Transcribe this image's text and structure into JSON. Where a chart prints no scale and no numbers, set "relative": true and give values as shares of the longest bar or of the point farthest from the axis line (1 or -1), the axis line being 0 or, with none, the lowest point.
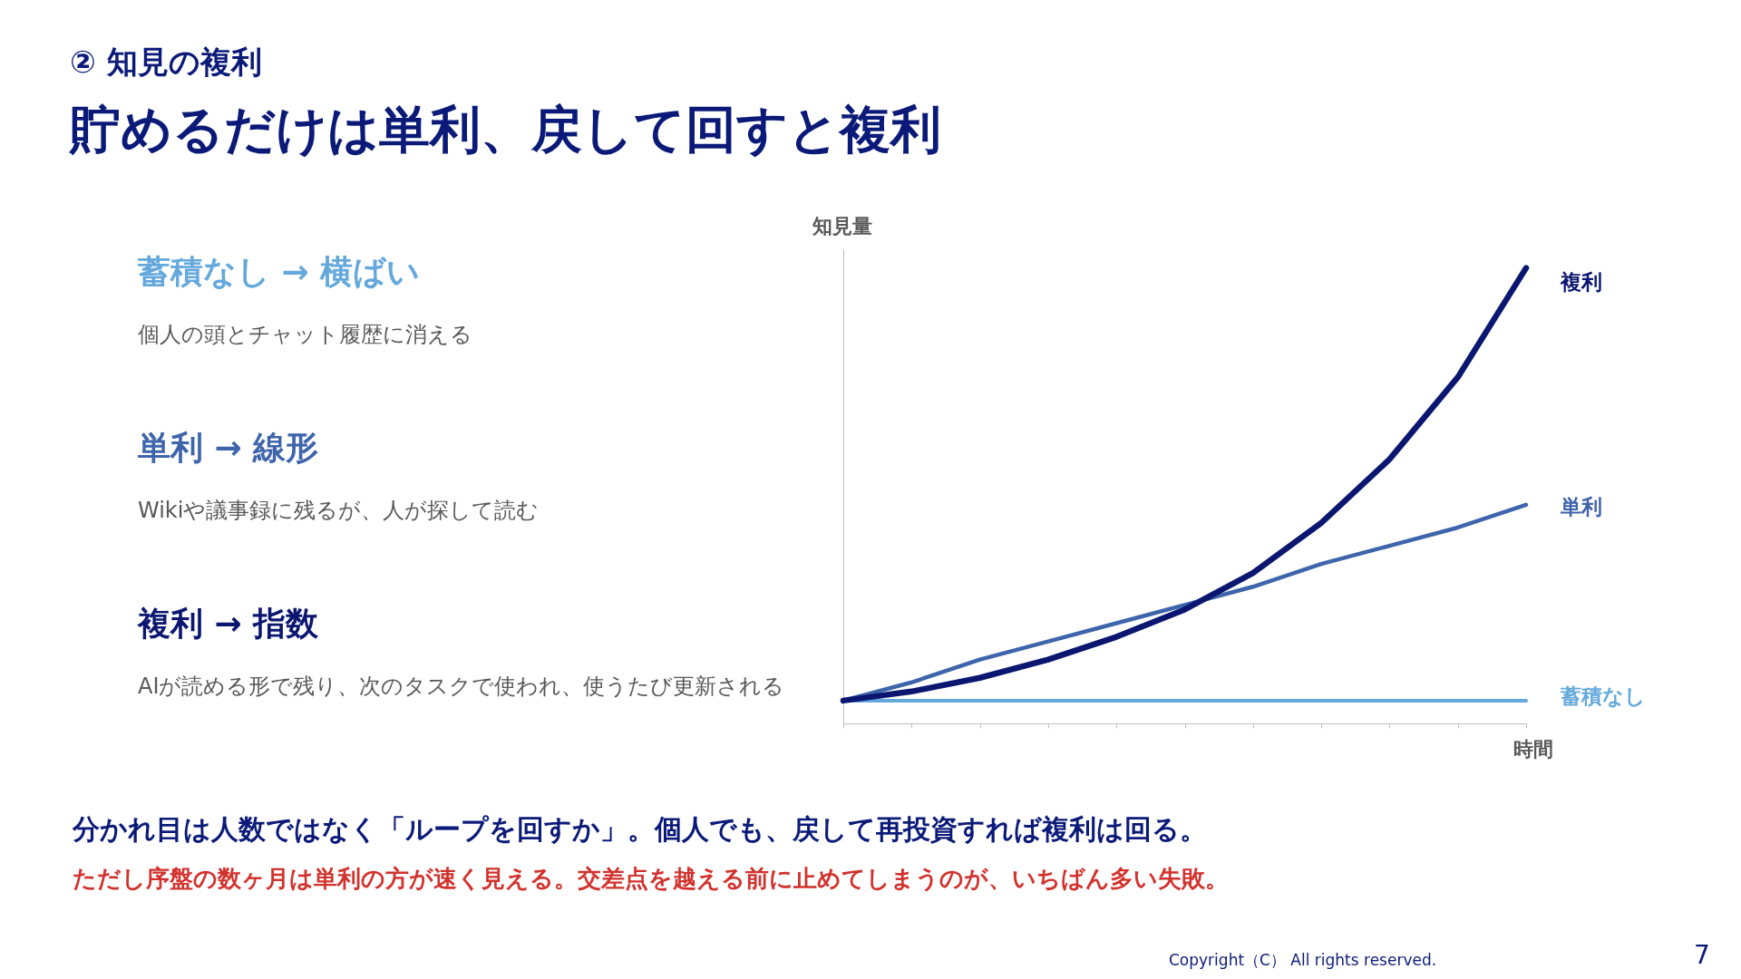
{
  "chart_data": {
    "type": "line",
    "subtitle": "② 知見の複利",
    "title": "貯めるだけは単利、戻して回すと複利",
    "ylabel": "知見量",
    "xlabel": "時間",
    "relative": true,
    "categories": [
      null,
      null,
      null,
      null,
      null,
      null,
      null,
      null,
      null,
      null,
      null
    ],
    "series": [
      {
        "name": "蓄積なし",
        "color": "#64a8dc",
        "values": [
          0.05,
          0.05,
          0.05,
          0.05,
          0.05,
          0.05,
          0.05,
          0.05,
          0.05,
          0.05,
          0.05
        ]
      },
      {
        "name": "単利",
        "color": "#3e64ab",
        "values": [
          0.05,
          0.09,
          0.14,
          0.18,
          0.22,
          0.26,
          0.3,
          0.35,
          0.39,
          0.43,
          0.48
        ]
      },
      {
        "name": "複利",
        "color": "#0b1670",
        "values": [
          0.05,
          0.07,
          0.1,
          0.14,
          0.19,
          0.25,
          0.33,
          0.44,
          0.58,
          0.76,
          1
        ]
      }
    ],
    "annotations": [
      "蓄積なし → 横ばい",
      "個人の頭とチャット履歴に消える",
      "単利 → 線形",
      "Wikiや議事録に残るが、人が探して読む",
      "複利 → 指数",
      "AIが読める形で残り、次のタスクで使われ、使うたび更新される",
      "分かれ目は人数ではなく「ループを回すか」。個人でも、戻して再投資すれば複利は回る。",
      "ただし序盤の数ヶ月は単利の方が速く見える。交差点を越える前に止めてしまうのが、いちばん多い失敗。",
      "Copyright（C） All rights reserved.",
      "7"
    ]
  }
}
